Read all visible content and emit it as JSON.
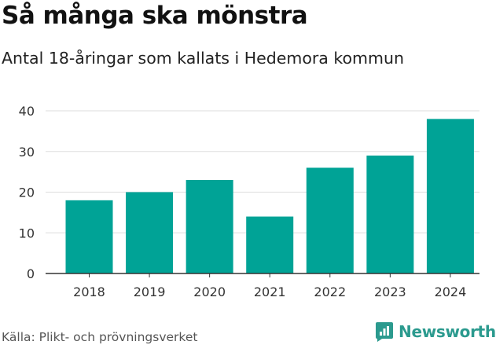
{
  "title": "Så många ska mönstra",
  "subtitle": "Antal 18-åringar som kallats i Hedemora kommun",
  "source": "Källa: Plikt- och prövningsverket",
  "brand": {
    "name": "Newsworthy",
    "color": "#2b9a8e"
  },
  "colors": {
    "bar": "#00a396",
    "grid": "#dddddd",
    "axis": "#333333"
  },
  "chart_data": {
    "type": "bar",
    "title": "Så många ska mönstra",
    "subtitle": "Antal 18-åringar som kallats i Hedemora kommun",
    "xlabel": "",
    "ylabel": "",
    "categories": [
      "2018",
      "2019",
      "2020",
      "2021",
      "2022",
      "2023",
      "2024"
    ],
    "values": [
      18,
      20,
      23,
      14,
      26,
      29,
      38
    ],
    "ylim": [
      0,
      40
    ],
    "yticks": [
      0,
      10,
      20,
      30,
      40
    ],
    "grid": true,
    "legend": "none"
  }
}
